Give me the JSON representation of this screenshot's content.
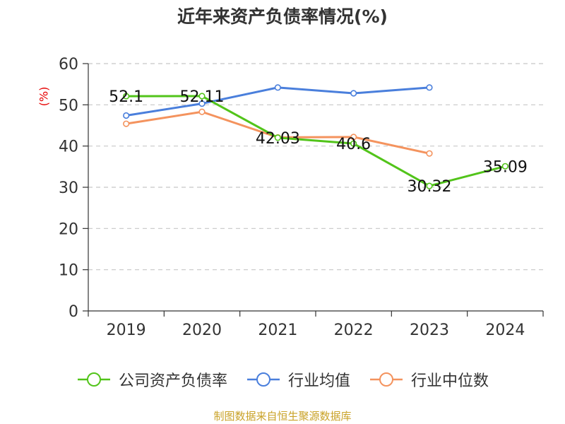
{
  "chart_data": {
    "type": "line",
    "title": "近年来资产负债率情况(%)",
    "ylabel": "(%)",
    "xlabel": "",
    "categories": [
      "2019",
      "2020",
      "2021",
      "2022",
      "2023",
      "2024"
    ],
    "ylim": [
      0,
      60
    ],
    "yticks": [
      0,
      10,
      20,
      30,
      40,
      50,
      60
    ],
    "grid": true,
    "legend_position": "bottom",
    "series": [
      {
        "name": "公司资产负债率",
        "color": "#52c41a",
        "values": [
          52.1,
          52.11,
          42.03,
          40.6,
          30.32,
          35.09
        ],
        "labels": [
          "52.1",
          "52.11",
          "42.03",
          "40.6",
          "30.32",
          "35.09"
        ]
      },
      {
        "name": "行业均值",
        "color": "#4a7fdc",
        "values": [
          47.4,
          50.3,
          54.2,
          52.8,
          54.2,
          null
        ]
      },
      {
        "name": "行业中位数",
        "color": "#f4935e",
        "values": [
          45.4,
          48.3,
          42.1,
          42.2,
          38.2,
          null
        ]
      }
    ]
  },
  "source": "制图数据来自恒生聚源数据库"
}
